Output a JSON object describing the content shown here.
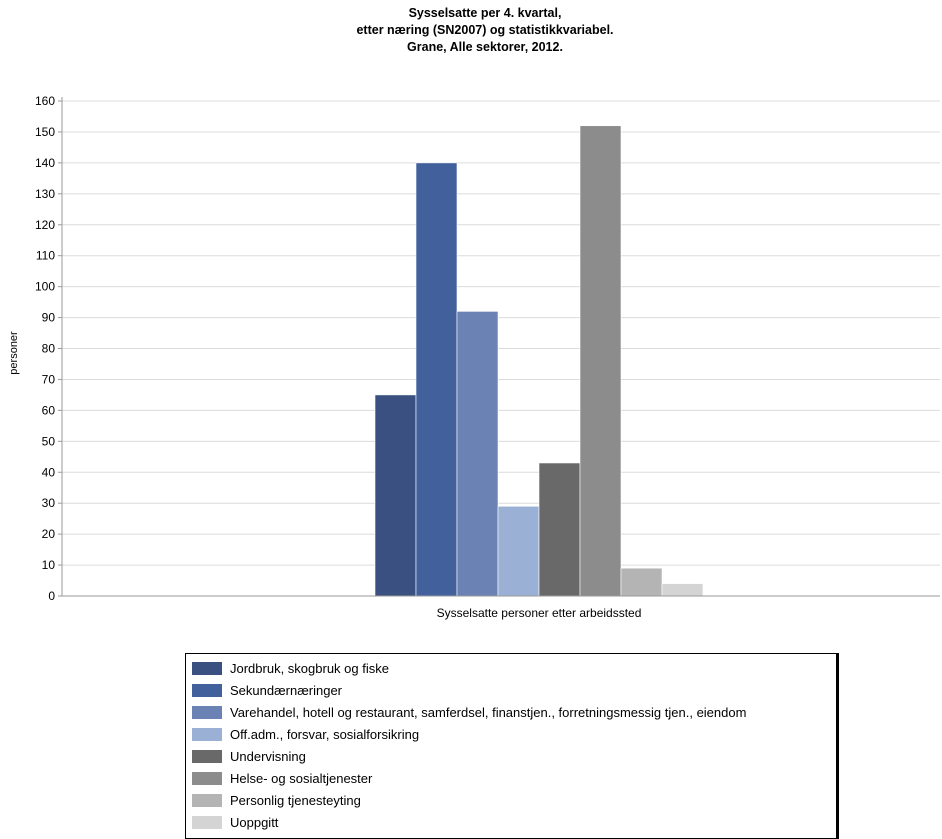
{
  "chart_data": {
    "type": "bar",
    "title_lines": [
      "Sysselsatte per 4. kvartal,",
      "etter næring (SN2007) og statistikkvariabel.",
      "Grane, Alle sektorer, 2012."
    ],
    "ylabel": "personer",
    "categories": [
      "Sysselsatte personer etter arbeidssted"
    ],
    "ylim": [
      0,
      160
    ],
    "yticks": [
      0,
      10,
      20,
      30,
      40,
      50,
      60,
      70,
      80,
      90,
      100,
      110,
      120,
      130,
      140,
      150,
      160
    ],
    "grid": true,
    "legend_position": "bottom",
    "series": [
      {
        "name": "Jordbruk, skogbruk og fiske",
        "values": [
          65
        ],
        "color": "#3a5080"
      },
      {
        "name": "Sekundærnæringer",
        "values": [
          140
        ],
        "color": "#41609c"
      },
      {
        "name": "Varehandel, hotell og restaurant, samferdsel, finanstjen., forretningsmessig tjen., eiendom",
        "values": [
          92
        ],
        "color": "#6a82b4"
      },
      {
        "name": "Off.adm., forsvar, sosialforsikring",
        "values": [
          29
        ],
        "color": "#9ab0d4"
      },
      {
        "name": "Undervisning",
        "values": [
          43
        ],
        "color": "#696969"
      },
      {
        "name": "Helse- og sosialtjenester",
        "values": [
          152
        ],
        "color": "#8c8c8c"
      },
      {
        "name": "Personlig tjenesteyting",
        "values": [
          9
        ],
        "color": "#b4b4b4"
      },
      {
        "name": "Uoppgitt",
        "values": [
          4
        ],
        "color": "#d4d4d4"
      }
    ]
  }
}
